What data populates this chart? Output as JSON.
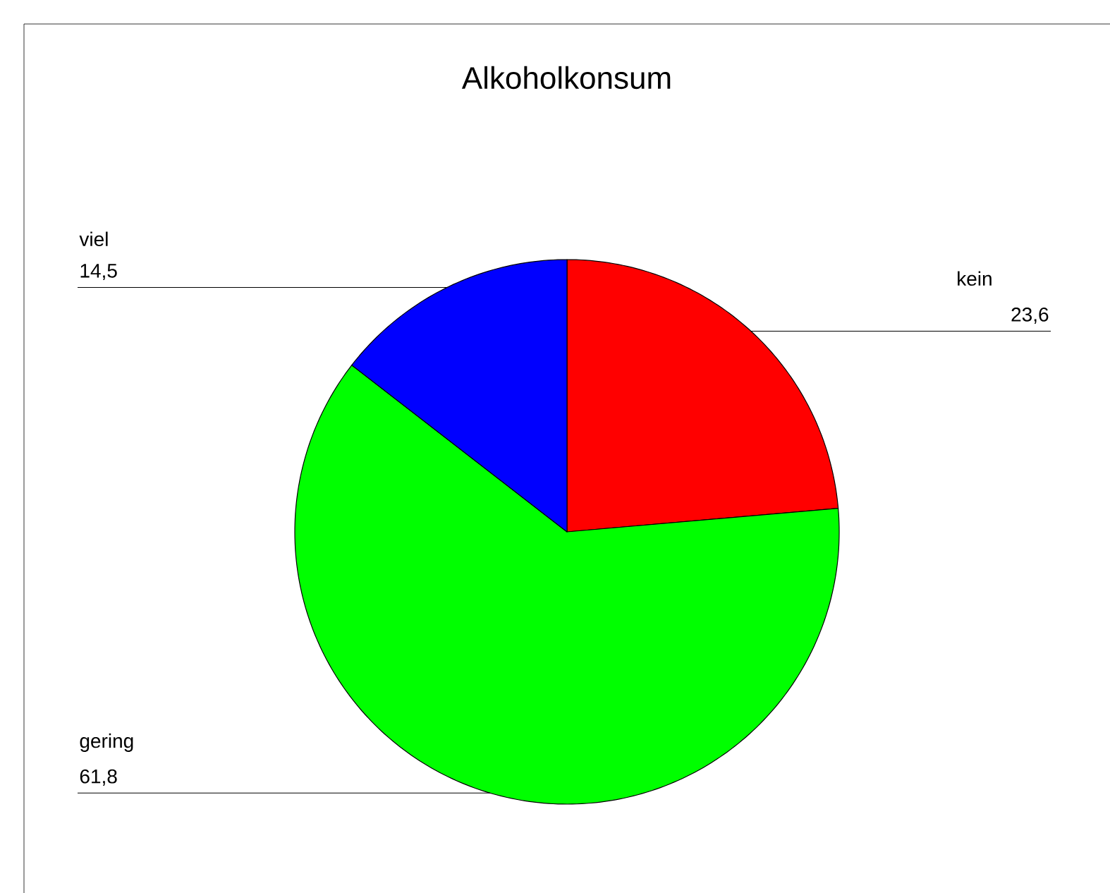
{
  "chart_data": {
    "type": "pie",
    "title": "Alkoholkonsum",
    "categories": [
      "kein",
      "gering",
      "viel"
    ],
    "values": [
      23.6,
      61.8,
      14.5
    ],
    "colors": [
      "#ff0000",
      "#00ff00",
      "#0000ff"
    ],
    "value_labels": [
      "23,6",
      "61,8",
      "14,5"
    ]
  }
}
